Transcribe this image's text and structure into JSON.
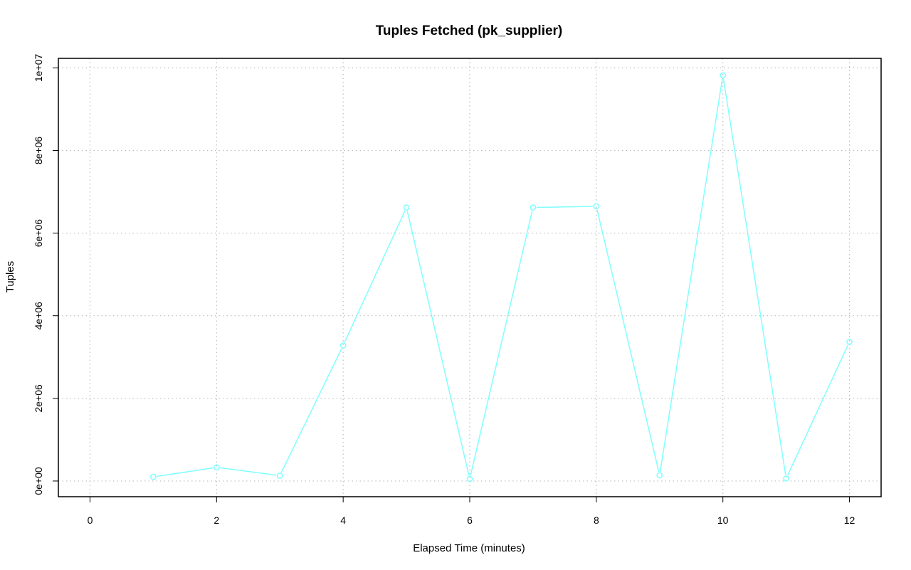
{
  "colors": {
    "series": "#7fffff",
    "grid": "#bdbdbd",
    "axis": "#000000",
    "background": "#ffffff"
  },
  "chart_data": {
    "type": "line",
    "title": "Tuples Fetched (pk_supplier)",
    "xlabel": "Elapsed Time (minutes)",
    "ylabel": "Tuples",
    "xlim": [
      -0.5,
      12.5
    ],
    "ylim": [
      -380000,
      10230000
    ],
    "x_ticks": [
      0,
      2,
      4,
      6,
      8,
      10,
      12
    ],
    "x_tick_labels": [
      "0",
      "2",
      "4",
      "6",
      "8",
      "10",
      "12"
    ],
    "y_ticks": [
      0,
      2000000,
      4000000,
      6000000,
      8000000,
      10000000
    ],
    "y_tick_labels": [
      "0e+00",
      "2e+06",
      "4e+06",
      "6e+06",
      "8e+06",
      "1e+07"
    ],
    "grid": true,
    "series": [
      {
        "marker": "open-circle",
        "x": [
          1,
          2,
          3,
          4,
          5,
          6,
          7,
          8,
          9,
          10,
          11,
          12
        ],
        "y": [
          100000,
          330000,
          130000,
          3280000,
          6620000,
          50000,
          6620000,
          6650000,
          140000,
          9820000,
          60000,
          3370000
        ]
      }
    ]
  }
}
